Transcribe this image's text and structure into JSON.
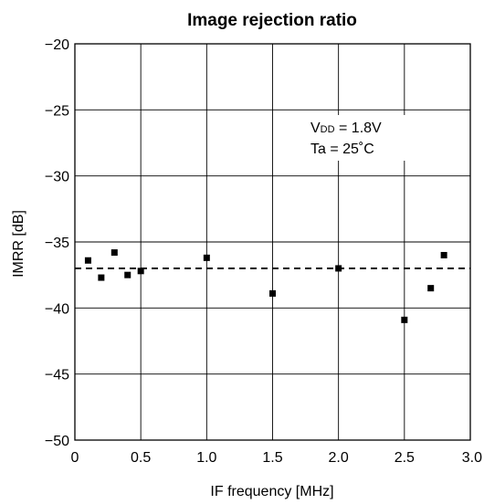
{
  "chart_data": {
    "type": "scatter",
    "title": "Image rejection ratio",
    "xlabel": "IF frequency [MHz]",
    "ylabel": "IMRR [dB]",
    "xlim": [
      0,
      3.0
    ],
    "ylim": [
      -50,
      -20
    ],
    "x_ticks": [
      "0",
      "0.5",
      "1.0",
      "1.5",
      "2.0",
      "2.5",
      "3.0"
    ],
    "y_ticks": [
      "−20",
      "−25",
      "−30",
      "−35",
      "−40",
      "−45",
      "−50"
    ],
    "grid": true,
    "series": [
      {
        "x": [
          0.1,
          0.2,
          0.3,
          0.4,
          0.5,
          1.0,
          1.5,
          2.0,
          2.5,
          2.7,
          2.8
        ],
        "y": [
          -36.4,
          -37.7,
          -35.8,
          -37.5,
          -37.2,
          -36.2,
          -38.9,
          -37.0,
          -40.9,
          -38.5,
          -36.0
        ],
        "color": "#000000",
        "marker": "square"
      }
    ],
    "reference_line": {
      "y": -37.0,
      "style": "dashed",
      "color": "#000000"
    },
    "annotation": {
      "vdd_prefix": "V",
      "vdd_subscript": "DD",
      "vdd_value": " = 1.8V",
      "ta_line": "Ta = 25˚C"
    }
  }
}
